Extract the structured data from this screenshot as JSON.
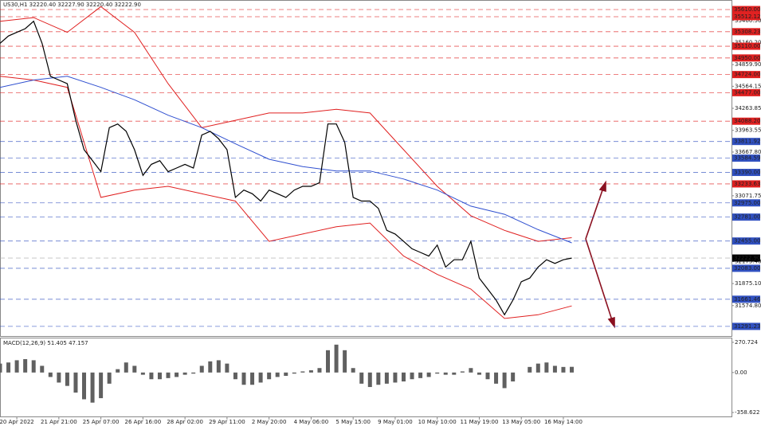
{
  "chart_data": {
    "type": "line",
    "title": "US30,H1  32220.40 32227.90 32220.40 32222.90",
    "xlim": [
      0,
      87
    ],
    "xticks": [
      {
        "value": 2,
        "label": "20 Apr 2022"
      },
      {
        "value": 7,
        "label": "21 Apr 21:00"
      },
      {
        "value": 12,
        "label": "25 Apr 07:00"
      },
      {
        "value": 17,
        "label": "26 Apr 16:00"
      },
      {
        "value": 22,
        "label": "28 Apr 02:00"
      },
      {
        "value": 27,
        "label": "29 Apr 11:00"
      },
      {
        "value": 32,
        "label": "2 May 20:00"
      },
      {
        "value": 37,
        "label": "4 May 06:00"
      },
      {
        "value": 42,
        "label": "5 May 15:00"
      },
      {
        "value": 47,
        "label": "9 May 01:00"
      },
      {
        "value": 52,
        "label": "10 May 10:00"
      },
      {
        "value": 57,
        "label": "11 May 19:00"
      },
      {
        "value": 62,
        "label": "13 May 05:00"
      },
      {
        "value": 67,
        "label": "16 May 14:00"
      }
    ],
    "ylim": [
      31160,
      35686
    ],
    "yticks": [
      {
        "value": 35460.5,
        "label": "35460.50"
      },
      {
        "value": 35160.2,
        "label": "35160.20"
      },
      {
        "value": 34859.9,
        "label": "34859.90"
      },
      34564.15,
      34263.85,
      33963.55,
      {
        "value": 33667.8,
        "label": "33667.80"
      },
      33071.75,
      {
        "value": 32175.4,
        "label": "32175.40"
      },
      {
        "value": 31875.1,
        "label": "31875.10"
      },
      {
        "value": 31574.8,
        "label": "31574.80"
      }
    ],
    "levels": [
      {
        "value": 35610,
        "label": "35610.00",
        "color": "#e02020"
      },
      {
        "value": 35512.12,
        "color": "#e02020"
      },
      {
        "value": 35308.23,
        "color": "#e02020"
      },
      {
        "value": 35110,
        "label": "35110.00",
        "color": "#e02020"
      },
      {
        "value": 34950,
        "label": "34950.00",
        "color": "#e02020"
      },
      {
        "value": 34724,
        "label": "34724.00",
        "color": "#e02020"
      },
      {
        "value": 34477,
        "label": "34477.00",
        "color": "#e02020"
      },
      {
        "value": 34088.2,
        "label": "34088.20",
        "color": "#e02020"
      },
      {
        "value": 33811.92,
        "color": "#3050c0"
      },
      {
        "value": 33584.59,
        "color": "#3050c0"
      },
      {
        "value": 33390,
        "label": "33390.00",
        "color": "#3050c0"
      },
      {
        "value": 33233.63,
        "color": "#e02020"
      },
      {
        "value": 32975,
        "label": "32975.00",
        "color": "#3050c0"
      },
      {
        "value": 32781,
        "label": "32781.00",
        "color": "#3050c0"
      },
      {
        "value": 32455,
        "label": "32455.00",
        "color": "#3050c0"
      },
      {
        "value": 32222.9,
        "label": "32222.90",
        "color": "#000000"
      },
      {
        "value": 32083,
        "label": "32083.00",
        "color": "#3050c0"
      },
      {
        "value": 31661.46,
        "color": "#3050c0"
      },
      {
        "value": 31291.23,
        "color": "#3050c0"
      }
    ],
    "x": [
      0,
      1,
      2,
      3,
      4,
      5,
      6,
      7,
      8,
      9,
      10,
      11,
      12,
      13,
      14,
      15,
      16,
      17,
      18,
      19,
      20,
      21,
      22,
      23,
      24,
      25,
      26,
      27,
      28,
      29,
      30,
      31,
      32,
      33,
      34,
      35,
      36,
      37,
      38,
      39,
      40,
      41,
      42,
      43,
      44,
      45,
      46,
      47,
      48,
      49,
      50,
      51,
      52,
      53,
      54,
      55,
      56,
      57,
      58,
      59,
      60,
      61,
      62,
      63,
      64,
      65,
      66,
      67,
      68
    ],
    "values": [
      35150,
      35250,
      35300,
      35350,
      35450,
      35150,
      34700,
      34650,
      34600,
      34100,
      33700,
      33550,
      33400,
      34000,
      34050,
      33950,
      33700,
      33350,
      33500,
      33550,
      33400,
      33450,
      33500,
      33450,
      33900,
      33950,
      33850,
      33700,
      33050,
      33150,
      33100,
      33000,
      33150,
      33100,
      33050,
      33150,
      33200,
      33200,
      33250,
      34050,
      34050,
      33800,
      33050,
      33000,
      33000,
      32900,
      32600,
      32550,
      32450,
      32350,
      32300,
      32250,
      32400,
      32100,
      32200,
      32200,
      32450,
      31950,
      31800,
      31650,
      31450,
      31650,
      31900,
      31950,
      32100,
      32200,
      32150,
      32200,
      32222.9
    ],
    "color": "#000000",
    "bands": {
      "x": [
        0,
        4,
        8,
        12,
        16,
        20,
        24,
        28,
        32,
        36,
        40,
        44,
        48,
        52,
        56,
        60,
        64,
        68
      ],
      "series": [
        {
          "color": "#e02020",
          "values": [
            35450,
            35500,
            35300,
            35650,
            35300,
            34600,
            34000,
            34100,
            34200,
            34200,
            34250,
            34200,
            33700,
            33200,
            32800,
            32600,
            32450,
            32500
          ]
        },
        {
          "color": "#e02020",
          "values": [
            34700,
            34650,
            34550,
            33050,
            33150,
            33200,
            33100,
            33000,
            32450,
            32550,
            32650,
            32700,
            32250,
            32000,
            31800,
            31400,
            31450,
            31570
          ]
        },
        {
          "color": "#3050d0",
          "values": [
            34550,
            34650,
            34700,
            34550,
            34380,
            34170,
            34000,
            33780,
            33570,
            33470,
            33410,
            33410,
            33300,
            33150,
            32930,
            32820,
            32610,
            32430
          ]
        }
      ]
    },
    "macd": {
      "title": "MACD(12,26,9) 51.405 47.157",
      "ylim": [
        -401,
        313
      ],
      "yticks": [
        270.724,
        {
          "value": 0,
          "label": "0.00"
        },
        -358.622
      ],
      "color": "#606060",
      "values": [
        80,
        90,
        110,
        120,
        110,
        60,
        -40,
        -90,
        -120,
        -180,
        -240,
        -270,
        -230,
        -100,
        30,
        90,
        60,
        -20,
        -60,
        -60,
        -50,
        -40,
        -20,
        -10,
        60,
        100,
        110,
        80,
        -60,
        -110,
        -110,
        -90,
        -60,
        -40,
        -30,
        -10,
        10,
        20,
        40,
        200,
        250,
        200,
        40,
        -100,
        -130,
        -110,
        -100,
        -90,
        -80,
        -60,
        -50,
        -40,
        -10,
        -20,
        -20,
        10,
        40,
        -20,
        -60,
        -100,
        -140,
        -80,
        0,
        50,
        80,
        90,
        60,
        50,
        51
      ]
    }
  }
}
